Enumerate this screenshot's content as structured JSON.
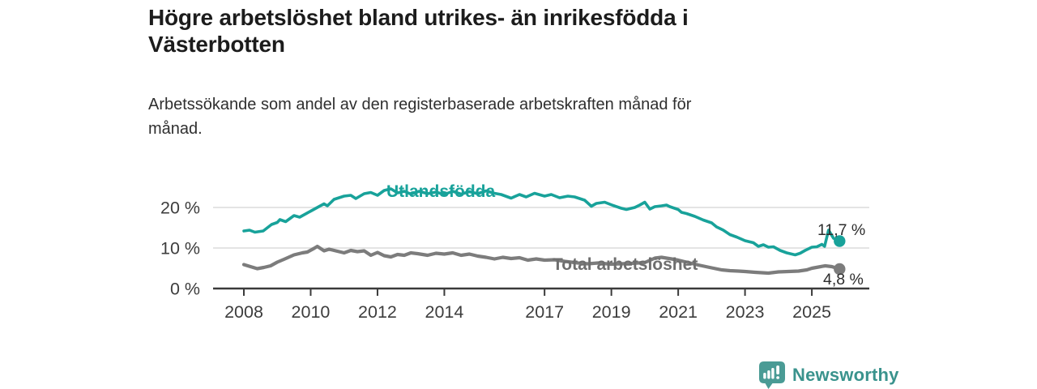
{
  "header": {
    "title_lines": [
      "Högre arbetslöshet bland utrikes- än inrikesfödda i",
      "Västerbotten"
    ],
    "subtitle_lines": [
      "Arbetssökande som andel av den registerbaserade arbetskraften månad för",
      "månad."
    ]
  },
  "footer": {
    "brand": "Newsworthy",
    "logo_icon": "bar-chart-speech-bubble-icon",
    "logo_color": "#4a9b95",
    "logo_text_color": "#3a938d"
  },
  "chart_data": {
    "type": "line",
    "title": "Högre arbetslöshet bland utrikes- än inrikesfödda i Västerbotten",
    "subtitle": "Arbetssökande som andel av den registerbaserade arbetskraften månad för månad.",
    "unit": "%",
    "grid": "horizontal-only",
    "legend_position": "inline-labels-on-lines",
    "xlim": [
      2007.1,
      2026.7
    ],
    "ylim": [
      0,
      26
    ],
    "x_ticks": [
      {
        "year": 2008,
        "label": "2008"
      },
      {
        "year": 2010,
        "label": "2010"
      },
      {
        "year": 2012,
        "label": "2012"
      },
      {
        "year": 2014,
        "label": "2014"
      },
      {
        "year": 2017,
        "label": "2017"
      },
      {
        "year": 2019,
        "label": "2019"
      },
      {
        "year": 2021,
        "label": "2021"
      },
      {
        "year": 2023,
        "label": "2023"
      },
      {
        "year": 2025,
        "label": "2025"
      }
    ],
    "y_ticks": [
      {
        "value": 0,
        "label": "0 %"
      },
      {
        "value": 10,
        "label": "10 %"
      },
      {
        "value": 20,
        "label": "20 %"
      }
    ],
    "annotation_color": "#2d2d2d",
    "grid_color": "#dcdcdc",
    "axis_color": "#3b3b3b",
    "tick_label_color": "#3d3d3d",
    "series": [
      {
        "name": "Utlandsfödda",
        "color": "#18a29a",
        "label_color": "#18a29a",
        "end_label": "11,7 %",
        "end_value": 11.7,
        "x": [
          2008.0,
          2008.17,
          2008.33,
          2008.58,
          2008.83,
          2009.0,
          2009.08,
          2009.25,
          2009.5,
          2009.67,
          2010.0,
          2010.2,
          2010.4,
          2010.5,
          2010.7,
          2011.0,
          2011.2,
          2011.35,
          2011.6,
          2011.8,
          2012.0,
          2012.2,
          2012.4,
          2012.6,
          2012.8,
          2013.0,
          2013.25,
          2013.5,
          2013.75,
          2014.0,
          2014.25,
          2014.5,
          2014.75,
          2015.0,
          2015.25,
          2015.5,
          2015.7,
          2016.0,
          2016.25,
          2016.45,
          2016.7,
          2017.0,
          2017.2,
          2017.45,
          2017.7,
          2017.9,
          2018.2,
          2018.4,
          2018.55,
          2018.8,
          2019.05,
          2019.3,
          2019.45,
          2019.7,
          2019.85,
          2020.0,
          2020.15,
          2020.3,
          2020.5,
          2020.65,
          2020.75,
          2021.0,
          2021.1,
          2021.25,
          2021.5,
          2021.75,
          2022.0,
          2022.15,
          2022.35,
          2022.55,
          2022.75,
          2023.0,
          2023.25,
          2023.4,
          2023.55,
          2023.7,
          2023.85,
          2024.05,
          2024.25,
          2024.5,
          2024.65,
          2024.8,
          2025.0,
          2025.15,
          2025.3,
          2025.38,
          2025.5,
          2025.65,
          2025.83
        ],
        "values": [
          14.2,
          14.4,
          13.9,
          14.2,
          15.8,
          16.3,
          17.0,
          16.5,
          18.0,
          17.6,
          19.1,
          20.0,
          20.9,
          20.4,
          22.0,
          22.8,
          23.0,
          22.2,
          23.4,
          23.7,
          23.0,
          24.2,
          24.6,
          23.6,
          24.0,
          23.3,
          24.0,
          23.4,
          23.8,
          23.2,
          24.0,
          23.3,
          23.9,
          23.4,
          24.1,
          23.5,
          23.2,
          22.3,
          23.2,
          22.6,
          23.5,
          22.8,
          23.2,
          22.4,
          22.8,
          22.6,
          21.8,
          20.3,
          21.0,
          21.3,
          20.5,
          19.8,
          19.5,
          20.0,
          20.6,
          21.3,
          19.6,
          20.2,
          20.4,
          20.6,
          20.2,
          19.5,
          18.8,
          18.5,
          17.8,
          16.9,
          16.2,
          15.2,
          14.4,
          13.3,
          12.7,
          11.8,
          11.3,
          10.4,
          10.8,
          10.2,
          10.3,
          9.4,
          8.8,
          8.3,
          8.7,
          9.4,
          10.2,
          10.3,
          10.9,
          10.4,
          14.4,
          12.4,
          11.7
        ]
      },
      {
        "name": "Total arbetslöshet",
        "color": "#7c7c7c",
        "label_color": "#6e6e6e",
        "end_label": "4,8 %",
        "end_value": 4.8,
        "x": [
          2008.0,
          2008.2,
          2008.4,
          2008.6,
          2008.8,
          2009.0,
          2009.2,
          2009.5,
          2009.75,
          2009.9,
          2010.1,
          2010.2,
          2010.4,
          2010.55,
          2010.8,
          2011.0,
          2011.2,
          2011.4,
          2011.6,
          2011.8,
          2012.0,
          2012.2,
          2012.4,
          2012.6,
          2012.8,
          2013.0,
          2013.2,
          2013.5,
          2013.75,
          2014.0,
          2014.25,
          2014.5,
          2014.75,
          2015.0,
          2015.25,
          2015.5,
          2015.75,
          2016.0,
          2016.25,
          2016.5,
          2016.75,
          2017.0,
          2017.3,
          2017.6,
          2018.0,
          2018.3,
          2018.6,
          2019.0,
          2019.3,
          2019.6,
          2020.0,
          2020.3,
          2020.5,
          2020.8,
          2021.0,
          2021.3,
          2021.6,
          2022.0,
          2022.3,
          2022.55,
          2022.8,
          2023.0,
          2023.3,
          2023.7,
          2024.0,
          2024.3,
          2024.6,
          2024.85,
          2025.0,
          2025.2,
          2025.4,
          2025.6,
          2025.83
        ],
        "values": [
          5.9,
          5.4,
          4.9,
          5.2,
          5.6,
          6.5,
          7.2,
          8.3,
          8.8,
          9.0,
          9.9,
          10.4,
          9.3,
          9.7,
          9.2,
          8.8,
          9.4,
          9.1,
          9.3,
          8.2,
          8.9,
          8.1,
          7.8,
          8.4,
          8.2,
          8.8,
          8.6,
          8.2,
          8.7,
          8.5,
          8.8,
          8.2,
          8.5,
          8.0,
          7.7,
          7.3,
          7.7,
          7.4,
          7.6,
          7.0,
          7.3,
          7.0,
          7.1,
          6.7,
          6.3,
          6.1,
          6.3,
          6.0,
          6.1,
          6.2,
          6.4,
          7.5,
          7.7,
          7.3,
          7.0,
          6.4,
          5.8,
          5.1,
          4.6,
          4.4,
          4.3,
          4.2,
          4.0,
          3.8,
          4.1,
          4.2,
          4.3,
          4.6,
          5.0,
          5.3,
          5.6,
          5.4,
          4.8
        ]
      }
    ]
  }
}
